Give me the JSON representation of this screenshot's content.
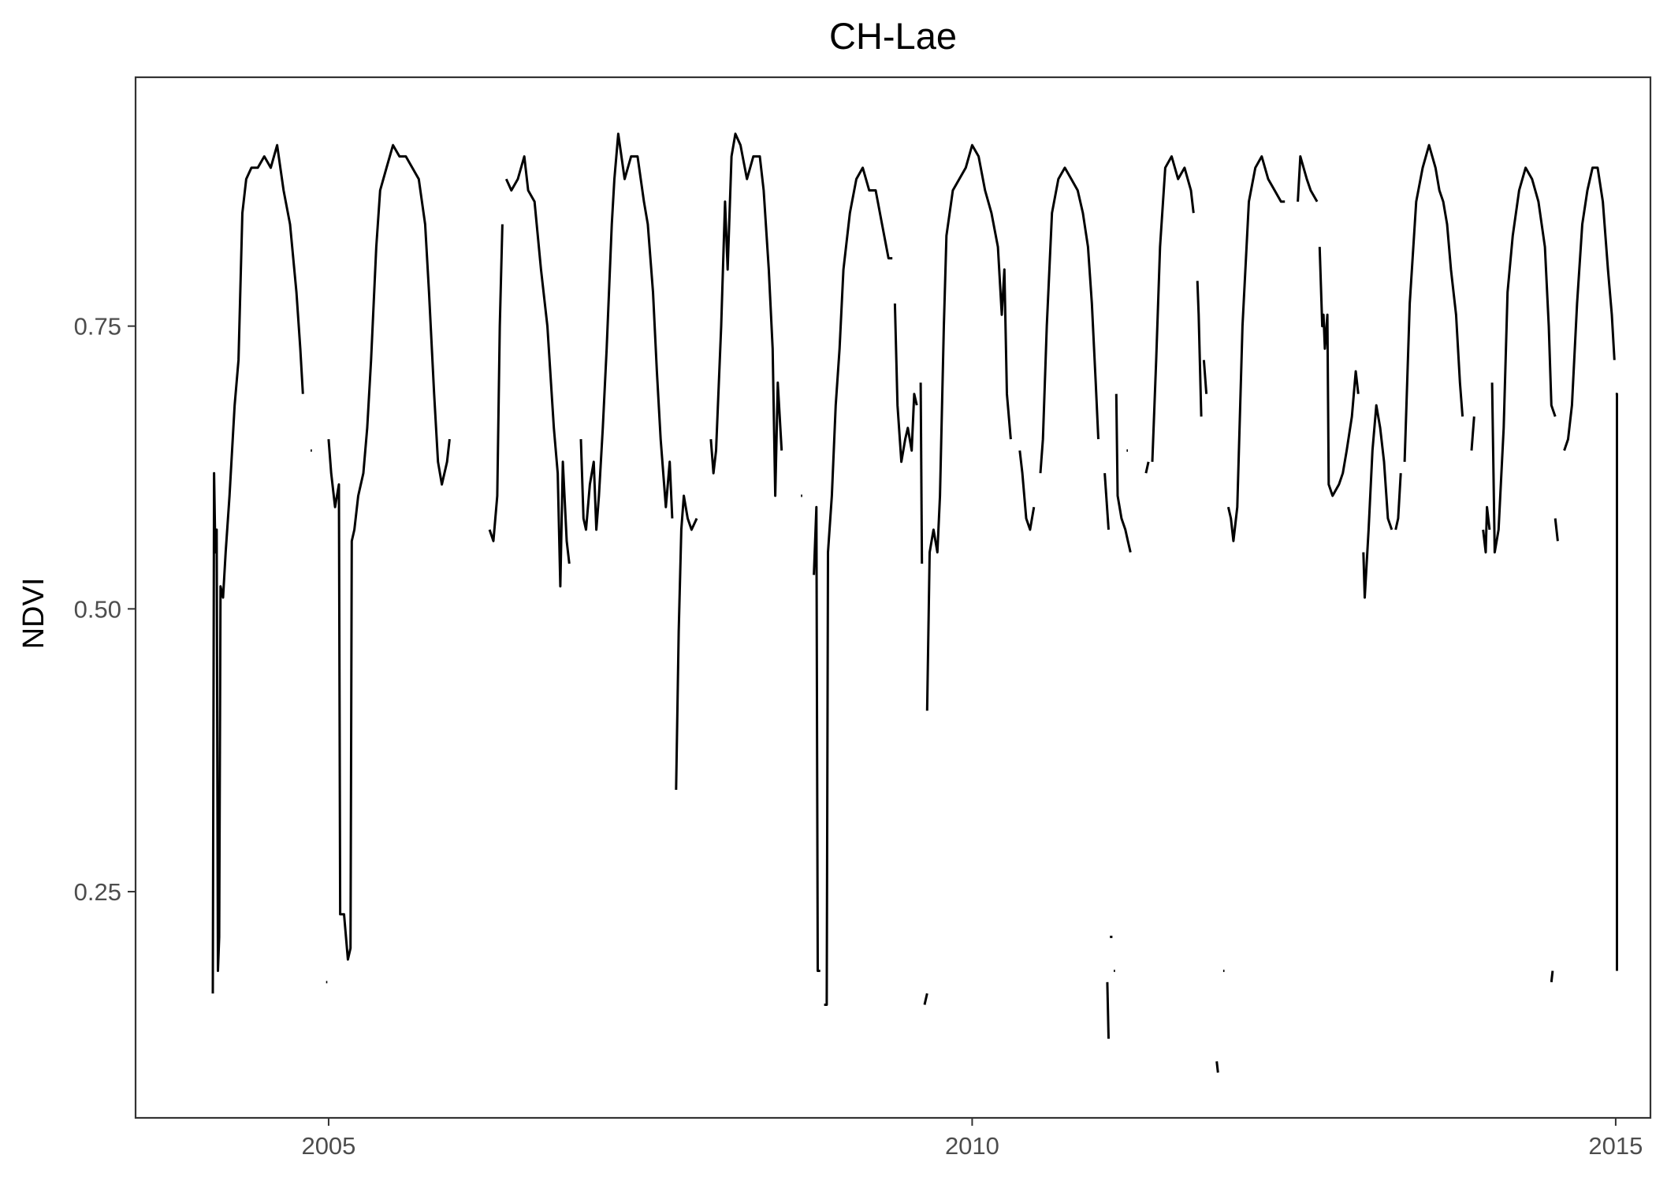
{
  "chart_data": {
    "type": "line",
    "title": "CH-Lae",
    "xlabel": "",
    "ylabel": "NDVI",
    "xlim": [
      2003.5,
      2015.27
    ],
    "ylim": [
      0.05,
      0.97
    ],
    "x_ticks": [
      2005,
      2010,
      2015
    ],
    "x_tick_labels": [
      "2005",
      "2010",
      "2015"
    ],
    "y_ticks": [
      0.25,
      0.5,
      0.75
    ],
    "y_tick_labels": [
      "0.25",
      "0.50",
      "0.75"
    ],
    "grid": false,
    "legend": "none",
    "series_segments": [
      [
        [
          2004.1,
          0.16
        ],
        [
          2004.11,
          0.62
        ],
        [
          2004.12,
          0.55
        ],
        [
          2004.13,
          0.57
        ],
        [
          2004.14,
          0.18
        ],
        [
          2004.15,
          0.21
        ],
        [
          2004.16,
          0.52
        ],
        [
          2004.18,
          0.51
        ],
        [
          2004.2,
          0.55
        ],
        [
          2004.23,
          0.6
        ],
        [
          2004.27,
          0.68
        ],
        [
          2004.3,
          0.72
        ],
        [
          2004.33,
          0.85
        ],
        [
          2004.36,
          0.88
        ],
        [
          2004.4,
          0.89
        ],
        [
          2004.45,
          0.89
        ],
        [
          2004.5,
          0.9
        ],
        [
          2004.55,
          0.89
        ],
        [
          2004.6,
          0.91
        ],
        [
          2004.65,
          0.87
        ],
        [
          2004.7,
          0.84
        ],
        [
          2004.75,
          0.78
        ],
        [
          2004.78,
          0.73
        ],
        [
          2004.8,
          0.69
        ]
      ],
      [
        [
          2004.86,
          0.64
        ],
        [
          2004.87,
          0.64
        ]
      ],
      [
        [
          2004.98,
          0.17
        ],
        [
          2004.99,
          0.17
        ]
      ],
      [
        [
          2005.0,
          0.65
        ],
        [
          2005.02,
          0.62
        ],
        [
          2005.05,
          0.59
        ],
        [
          2005.08,
          0.61
        ],
        [
          2005.09,
          0.23
        ],
        [
          2005.12,
          0.23
        ],
        [
          2005.15,
          0.19
        ],
        [
          2005.17,
          0.2
        ],
        [
          2005.18,
          0.56
        ],
        [
          2005.2,
          0.57
        ],
        [
          2005.23,
          0.6
        ],
        [
          2005.27,
          0.62
        ],
        [
          2005.3,
          0.66
        ],
        [
          2005.33,
          0.72
        ],
        [
          2005.37,
          0.82
        ],
        [
          2005.4,
          0.87
        ],
        [
          2005.45,
          0.89
        ],
        [
          2005.5,
          0.91
        ],
        [
          2005.55,
          0.9
        ],
        [
          2005.6,
          0.9
        ],
        [
          2005.65,
          0.89
        ],
        [
          2005.7,
          0.88
        ],
        [
          2005.75,
          0.84
        ],
        [
          2005.78,
          0.78
        ],
        [
          2005.82,
          0.69
        ],
        [
          2005.85,
          0.63
        ],
        [
          2005.88,
          0.61
        ],
        [
          2005.92,
          0.63
        ],
        [
          2005.94,
          0.65
        ]
      ],
      [
        [
          2006.25,
          0.57
        ],
        [
          2006.28,
          0.56
        ],
        [
          2006.31,
          0.6
        ],
        [
          2006.33,
          0.75
        ],
        [
          2006.35,
          0.84
        ]
      ],
      [
        [
          2006.38,
          0.88
        ],
        [
          2006.42,
          0.87
        ],
        [
          2006.47,
          0.88
        ],
        [
          2006.52,
          0.9
        ],
        [
          2006.55,
          0.87
        ],
        [
          2006.6,
          0.86
        ],
        [
          2006.65,
          0.8
        ],
        [
          2006.7,
          0.75
        ],
        [
          2006.75,
          0.66
        ],
        [
          2006.78,
          0.62
        ],
        [
          2006.8,
          0.52
        ],
        [
          2006.82,
          0.63
        ],
        [
          2006.85,
          0.56
        ],
        [
          2006.87,
          0.54
        ]
      ],
      [
        [
          2006.96,
          0.65
        ],
        [
          2006.98,
          0.58
        ],
        [
          2007.0,
          0.57
        ],
        [
          2007.03,
          0.61
        ],
        [
          2007.06,
          0.63
        ],
        [
          2007.08,
          0.57
        ],
        [
          2007.1,
          0.6
        ],
        [
          2007.13,
          0.66
        ],
        [
          2007.16,
          0.73
        ],
        [
          2007.2,
          0.84
        ],
        [
          2007.22,
          0.88
        ],
        [
          2007.25,
          0.92
        ],
        [
          2007.3,
          0.88
        ],
        [
          2007.35,
          0.9
        ],
        [
          2007.4,
          0.9
        ],
        [
          2007.45,
          0.86
        ],
        [
          2007.48,
          0.84
        ],
        [
          2007.52,
          0.78
        ],
        [
          2007.55,
          0.71
        ],
        [
          2007.58,
          0.65
        ],
        [
          2007.62,
          0.59
        ],
        [
          2007.65,
          0.63
        ],
        [
          2007.67,
          0.58
        ]
      ],
      [
        [
          2007.7,
          0.34
        ],
        [
          2007.72,
          0.48
        ],
        [
          2007.74,
          0.57
        ],
        [
          2007.76,
          0.6
        ],
        [
          2007.79,
          0.58
        ],
        [
          2007.82,
          0.57
        ],
        [
          2007.86,
          0.58
        ]
      ],
      [
        [
          2007.97,
          0.65
        ],
        [
          2007.99,
          0.62
        ],
        [
          2008.01,
          0.64
        ],
        [
          2008.05,
          0.75
        ],
        [
          2008.08,
          0.86
        ],
        [
          2008.1,
          0.8
        ],
        [
          2008.13,
          0.9
        ],
        [
          2008.16,
          0.92
        ],
        [
          2008.2,
          0.91
        ],
        [
          2008.25,
          0.88
        ],
        [
          2008.3,
          0.9
        ],
        [
          2008.35,
          0.9
        ],
        [
          2008.38,
          0.87
        ],
        [
          2008.42,
          0.8
        ],
        [
          2008.45,
          0.73
        ],
        [
          2008.47,
          0.6
        ],
        [
          2008.49,
          0.7
        ],
        [
          2008.52,
          0.64
        ]
      ],
      [
        [
          2008.67,
          0.6
        ],
        [
          2008.68,
          0.6
        ]
      ],
      [
        [
          2008.77,
          0.53
        ],
        [
          2008.79,
          0.59
        ],
        [
          2008.8,
          0.18
        ],
        [
          2008.82,
          0.18
        ]
      ],
      [
        [
          2008.85,
          0.15
        ],
        [
          2008.87,
          0.15
        ],
        [
          2008.88,
          0.55
        ],
        [
          2008.91,
          0.6
        ],
        [
          2008.94,
          0.68
        ],
        [
          2008.97,
          0.73
        ],
        [
          2009.0,
          0.8
        ],
        [
          2009.05,
          0.85
        ],
        [
          2009.1,
          0.88
        ],
        [
          2009.15,
          0.89
        ],
        [
          2009.2,
          0.87
        ],
        [
          2009.25,
          0.87
        ],
        [
          2009.3,
          0.84
        ],
        [
          2009.35,
          0.81
        ],
        [
          2009.38,
          0.81
        ]
      ],
      [
        [
          2009.4,
          0.77
        ],
        [
          2009.42,
          0.68
        ],
        [
          2009.45,
          0.63
        ],
        [
          2009.48,
          0.65
        ],
        [
          2009.5,
          0.66
        ],
        [
          2009.53,
          0.64
        ],
        [
          2009.55,
          0.69
        ],
        [
          2009.57,
          0.68
        ]
      ],
      [
        [
          2009.6,
          0.7
        ],
        [
          2009.61,
          0.54
        ]
      ],
      [
        [
          2009.63,
          0.15
        ],
        [
          2009.65,
          0.16
        ]
      ],
      [
        [
          2009.65,
          0.41
        ],
        [
          2009.67,
          0.55
        ],
        [
          2009.7,
          0.57
        ],
        [
          2009.73,
          0.55
        ],
        [
          2009.75,
          0.6
        ],
        [
          2009.78,
          0.75
        ],
        [
          2009.8,
          0.83
        ],
        [
          2009.85,
          0.87
        ],
        [
          2009.9,
          0.88
        ],
        [
          2009.95,
          0.89
        ],
        [
          2010.0,
          0.91
        ],
        [
          2010.05,
          0.9
        ],
        [
          2010.1,
          0.87
        ],
        [
          2010.15,
          0.85
        ],
        [
          2010.2,
          0.82
        ],
        [
          2010.23,
          0.76
        ],
        [
          2010.25,
          0.8
        ],
        [
          2010.27,
          0.69
        ],
        [
          2010.3,
          0.65
        ]
      ],
      [
        [
          2010.37,
          0.64
        ],
        [
          2010.39,
          0.62
        ],
        [
          2010.42,
          0.58
        ],
        [
          2010.45,
          0.57
        ],
        [
          2010.48,
          0.59
        ]
      ],
      [
        [
          2010.53,
          0.62
        ],
        [
          2010.55,
          0.65
        ],
        [
          2010.58,
          0.75
        ],
        [
          2010.62,
          0.85
        ],
        [
          2010.67,
          0.88
        ],
        [
          2010.72,
          0.89
        ],
        [
          2010.77,
          0.88
        ],
        [
          2010.82,
          0.87
        ],
        [
          2010.86,
          0.85
        ],
        [
          2010.9,
          0.82
        ],
        [
          2010.93,
          0.77
        ],
        [
          2010.96,
          0.7
        ],
        [
          2010.98,
          0.65
        ]
      ],
      [
        [
          2011.03,
          0.62
        ],
        [
          2011.06,
          0.57
        ]
      ],
      [
        [
          2011.1,
          0.18
        ],
        [
          2011.11,
          0.18
        ]
      ],
      [
        [
          2011.12,
          0.69
        ],
        [
          2011.13,
          0.6
        ],
        [
          2011.16,
          0.58
        ],
        [
          2011.19,
          0.57
        ],
        [
          2011.21,
          0.56
        ],
        [
          2011.23,
          0.55
        ]
      ],
      [
        [
          2011.05,
          0.17
        ],
        [
          2011.06,
          0.12
        ]
      ],
      [
        [
          2011.07,
          0.21
        ],
        [
          2011.09,
          0.21
        ]
      ],
      [
        [
          2011.2,
          0.64
        ],
        [
          2011.21,
          0.64
        ]
      ],
      [
        [
          2011.35,
          0.62
        ],
        [
          2011.37,
          0.63
        ]
      ],
      [
        [
          2011.4,
          0.63
        ],
        [
          2011.43,
          0.72
        ],
        [
          2011.46,
          0.82
        ],
        [
          2011.5,
          0.89
        ],
        [
          2011.55,
          0.9
        ],
        [
          2011.6,
          0.88
        ],
        [
          2011.65,
          0.89
        ],
        [
          2011.7,
          0.87
        ],
        [
          2011.72,
          0.85
        ]
      ],
      [
        [
          2011.75,
          0.79
        ],
        [
          2011.76,
          0.76
        ],
        [
          2011.78,
          0.67
        ]
      ],
      [
        [
          2011.8,
          0.72
        ],
        [
          2011.82,
          0.69
        ]
      ],
      [
        [
          2011.9,
          0.1
        ],
        [
          2011.91,
          0.09
        ]
      ],
      [
        [
          2011.95,
          0.18
        ],
        [
          2011.96,
          0.18
        ]
      ],
      [
        [
          2011.99,
          0.59
        ],
        [
          2012.01,
          0.58
        ],
        [
          2012.03,
          0.56
        ],
        [
          2012.06,
          0.59
        ],
        [
          2012.1,
          0.75
        ],
        [
          2012.15,
          0.86
        ],
        [
          2012.2,
          0.89
        ],
        [
          2012.25,
          0.9
        ],
        [
          2012.3,
          0.88
        ],
        [
          2012.35,
          0.87
        ],
        [
          2012.4,
          0.86
        ],
        [
          2012.43,
          0.86
        ]
      ],
      [
        [
          2012.53,
          0.86
        ],
        [
          2012.55,
          0.9
        ],
        [
          2012.6,
          0.88
        ],
        [
          2012.63,
          0.87
        ],
        [
          2012.68,
          0.86
        ]
      ],
      [
        [
          2012.7,
          0.82
        ],
        [
          2012.72,
          0.75
        ],
        [
          2012.73,
          0.76
        ],
        [
          2012.74,
          0.73
        ],
        [
          2012.76,
          0.76
        ],
        [
          2012.77,
          0.61
        ],
        [
          2012.8,
          0.6
        ],
        [
          2012.85,
          0.61
        ],
        [
          2012.88,
          0.62
        ],
        [
          2012.91,
          0.64
        ],
        [
          2012.95,
          0.67
        ],
        [
          2012.98,
          0.71
        ],
        [
          2013.0,
          0.69
        ]
      ],
      [
        [
          2013.04,
          0.55
        ],
        [
          2013.05,
          0.51
        ],
        [
          2013.08,
          0.57
        ],
        [
          2013.11,
          0.64
        ],
        [
          2013.14,
          0.68
        ],
        [
          2013.17,
          0.66
        ],
        [
          2013.2,
          0.63
        ],
        [
          2013.23,
          0.58
        ],
        [
          2013.26,
          0.57
        ]
      ],
      [
        [
          2013.29,
          0.57
        ],
        [
          2013.31,
          0.58
        ],
        [
          2013.33,
          0.62
        ]
      ],
      [
        [
          2013.36,
          0.63
        ],
        [
          2013.4,
          0.77
        ],
        [
          2013.45,
          0.86
        ],
        [
          2013.5,
          0.89
        ],
        [
          2013.55,
          0.91
        ],
        [
          2013.6,
          0.89
        ],
        [
          2013.63,
          0.87
        ],
        [
          2013.66,
          0.86
        ],
        [
          2013.69,
          0.84
        ],
        [
          2013.72,
          0.8
        ],
        [
          2013.76,
          0.76
        ],
        [
          2013.79,
          0.7
        ],
        [
          2013.81,
          0.67
        ]
      ],
      [
        [
          2013.88,
          0.64
        ],
        [
          2013.9,
          0.67
        ]
      ],
      [
        [
          2013.97,
          0.57
        ],
        [
          2013.99,
          0.55
        ],
        [
          2014.0,
          0.59
        ],
        [
          2014.02,
          0.57
        ]
      ],
      [
        [
          2014.04,
          0.7
        ],
        [
          2014.06,
          0.55
        ],
        [
          2014.09,
          0.57
        ],
        [
          2014.13,
          0.66
        ],
        [
          2014.16,
          0.78
        ],
        [
          2014.2,
          0.83
        ],
        [
          2014.25,
          0.87
        ],
        [
          2014.3,
          0.89
        ],
        [
          2014.35,
          0.88
        ],
        [
          2014.4,
          0.86
        ],
        [
          2014.45,
          0.82
        ],
        [
          2014.48,
          0.75
        ],
        [
          2014.5,
          0.68
        ],
        [
          2014.53,
          0.67
        ]
      ],
      [
        [
          2014.5,
          0.17
        ],
        [
          2014.51,
          0.18
        ]
      ],
      [
        [
          2014.53,
          0.58
        ],
        [
          2014.55,
          0.56
        ]
      ],
      [
        [
          2014.6,
          0.64
        ],
        [
          2014.63,
          0.65
        ],
        [
          2014.66,
          0.68
        ],
        [
          2014.7,
          0.77
        ],
        [
          2014.74,
          0.84
        ],
        [
          2014.78,
          0.87
        ],
        [
          2014.82,
          0.89
        ],
        [
          2014.86,
          0.89
        ],
        [
          2014.9,
          0.86
        ],
        [
          2014.94,
          0.8
        ],
        [
          2014.97,
          0.76
        ],
        [
          2014.99,
          0.72
        ]
      ],
      [
        [
          2015.0,
          0.69
        ],
        [
          2015.01,
          0.69
        ],
        [
          2015.01,
          0.18
        ]
      ]
    ]
  }
}
